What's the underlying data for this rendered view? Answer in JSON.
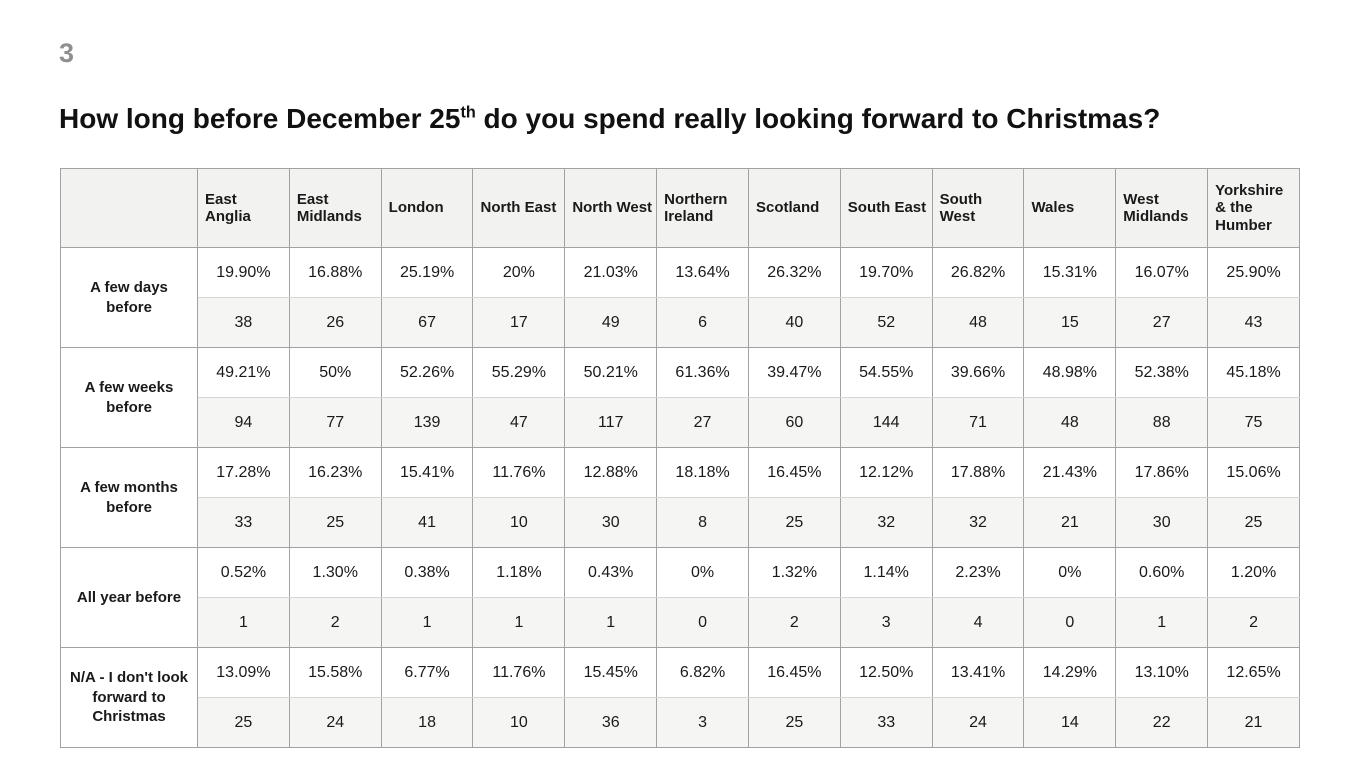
{
  "page": {
    "number": "3",
    "title": {
      "prefix": "How long before December 25",
      "superscript": "th",
      "suffix": " do you spend really looking forward to Christmas?"
    }
  },
  "table": {
    "corner_label": "",
    "columns": [
      "East Anglia",
      "East Midlands",
      "London",
      "North East",
      "North West",
      "Northern Ireland",
      "Scotland",
      "South East",
      "South West",
      "Wales",
      "West Midlands",
      "Yorkshire & the Humber"
    ],
    "rows": [
      {
        "label": "A few days before",
        "percentages": [
          "19.90%",
          "16.88%",
          "25.19%",
          "20%",
          "21.03%",
          "13.64%",
          "26.32%",
          "19.70%",
          "26.82%",
          "15.31%",
          "16.07%",
          "25.90%"
        ],
        "counts": [
          "38",
          "26",
          "67",
          "17",
          "49",
          "6",
          "40",
          "52",
          "48",
          "15",
          "27",
          "43"
        ]
      },
      {
        "label": "A few weeks before",
        "percentages": [
          "49.21%",
          "50%",
          "52.26%",
          "55.29%",
          "50.21%",
          "61.36%",
          "39.47%",
          "54.55%",
          "39.66%",
          "48.98%",
          "52.38%",
          "45.18%"
        ],
        "counts": [
          "94",
          "77",
          "139",
          "47",
          "117",
          "27",
          "60",
          "144",
          "71",
          "48",
          "88",
          "75"
        ]
      },
      {
        "label": "A few months before",
        "percentages": [
          "17.28%",
          "16.23%",
          "15.41%",
          "11.76%",
          "12.88%",
          "18.18%",
          "16.45%",
          "12.12%",
          "17.88%",
          "21.43%",
          "17.86%",
          "15.06%"
        ],
        "counts": [
          "33",
          "25",
          "41",
          "10",
          "30",
          "8",
          "25",
          "32",
          "32",
          "21",
          "30",
          "25"
        ]
      },
      {
        "label": "All year before",
        "percentages": [
          "0.52%",
          "1.30%",
          "0.38%",
          "1.18%",
          "0.43%",
          "0%",
          "1.32%",
          "1.14%",
          "2.23%",
          "0%",
          "0.60%",
          "1.20%"
        ],
        "counts": [
          "1",
          "2",
          "1",
          "1",
          "1",
          "0",
          "2",
          "3",
          "4",
          "0",
          "1",
          "2"
        ]
      },
      {
        "label": "N/A - I don't look forward to Christmas",
        "percentages": [
          "13.09%",
          "15.58%",
          "6.77%",
          "11.76%",
          "15.45%",
          "6.82%",
          "16.45%",
          "12.50%",
          "13.41%",
          "14.29%",
          "13.10%",
          "12.65%"
        ],
        "counts": [
          "25",
          "24",
          "18",
          "10",
          "36",
          "3",
          "25",
          "33",
          "24",
          "14",
          "22",
          "21"
        ]
      }
    ]
  },
  "colors": {
    "header_bg": "#f2f2f1",
    "count_row_bg": "#f5f5f4",
    "grid_border": "#a2a2a2",
    "inner_border": "#d6d6d6",
    "page_number": "#8f8f8f",
    "text": "#1a1a1a"
  }
}
